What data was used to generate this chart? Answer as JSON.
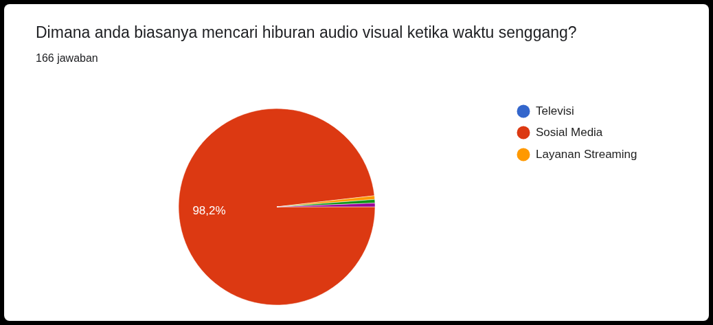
{
  "chart_data": {
    "type": "pie",
    "title": "Dimana anda biasanya mencari hiburan audio visual ketika waktu senggang?",
    "subtitle": "166 jawaban",
    "categories": [
      "Televisi",
      "Sosial Media",
      "Layanan Streaming",
      null,
      null
    ],
    "values": [
      0,
      98.2,
      0.6,
      0.6,
      0.6
    ],
    "colors": [
      "#3366cc",
      "#dc3912",
      "#ff9900",
      "#109618",
      "#990099"
    ],
    "value_labels": [
      null,
      "98,2%",
      null,
      null,
      null
    ],
    "legend": "right"
  }
}
